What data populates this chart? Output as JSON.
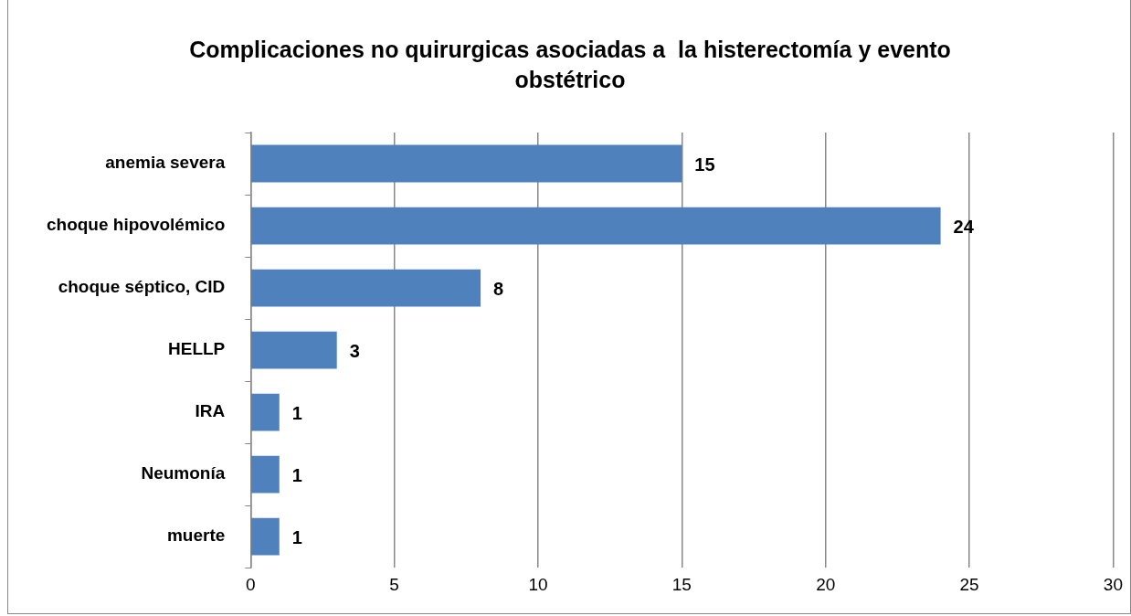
{
  "chart_data": {
    "type": "bar",
    "orientation": "horizontal",
    "title": "Complicaciones no quirurgicas asociadas a  la histerectomía y evento obstétrico",
    "categories": [
      "anemia severa",
      "choque hipovolémico",
      "choque séptico, CID",
      "HELLP",
      "IRA",
      "Neumonía",
      "muerte"
    ],
    "values": [
      15,
      24,
      8,
      3,
      1,
      1,
      1
    ],
    "color": "#4f81bd",
    "xlim": [
      0,
      30
    ],
    "xticks": [
      0,
      5,
      10,
      15,
      20,
      25,
      30
    ],
    "grid": "x",
    "data_labels": true,
    "legend": false
  }
}
